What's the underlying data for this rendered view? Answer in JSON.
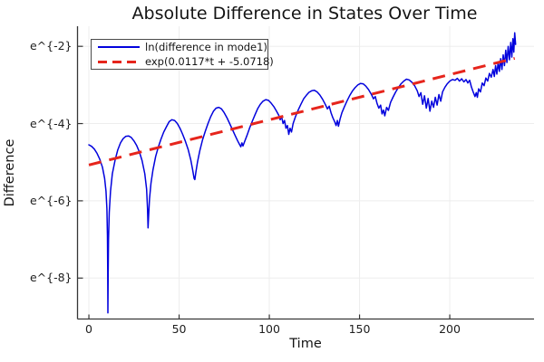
{
  "title": "Absolute Difference in States Over Time",
  "axes": {
    "x_label": "Time",
    "y_label": "Difference",
    "x_ticks": [
      {
        "value": 0,
        "label": "0"
      },
      {
        "value": 50,
        "label": "50"
      },
      {
        "value": 100,
        "label": "100"
      },
      {
        "value": 150,
        "label": "150"
      },
      {
        "value": 200,
        "label": "200"
      }
    ],
    "y_ticks": [
      {
        "ln": -2,
        "label": "e^{-2}"
      },
      {
        "ln": -4,
        "label": "e^{-4}"
      },
      {
        "ln": -6,
        "label": "e^{-6}"
      },
      {
        "ln": -8,
        "label": "e^{-8}"
      }
    ]
  },
  "legend": {
    "entries": [
      {
        "label": "ln(difference in mode1)",
        "color": "#0202dd",
        "style": "solid"
      },
      {
        "label": "exp(0.0117*t + -5.0718)",
        "color": "#e6251c",
        "style": "dashed"
      }
    ]
  },
  "colors": {
    "series_blue": "#0202dd",
    "series_red": "#e6251c",
    "gridline": "#ededed",
    "spine": "#363636",
    "text": "#141414",
    "background": "#ffffff"
  },
  "chart_data": {
    "type": "line",
    "title": "Absolute Difference in States Over Time",
    "xlabel": "Time",
    "ylabel": "Difference",
    "x_scale": "linear",
    "y_scale": "ln (tick labels shown as e^{v})",
    "xlim": [
      -6.3,
      246.7
    ],
    "ylim_ln": [
      -9.06,
      -1.48
    ],
    "grid": true,
    "legend_position": "top-left inside",
    "series": [
      {
        "name": "ln(difference in mode1)",
        "color": "#0202dd",
        "style": "solid",
        "points_format": "[t, ln(difference)]",
        "points": [
          [
            0,
            -4.55
          ],
          [
            1.5,
            -4.59
          ],
          [
            3,
            -4.66
          ],
          [
            4.5,
            -4.77
          ],
          [
            6,
            -4.92
          ],
          [
            7.5,
            -5.13
          ],
          [
            8.7,
            -5.42
          ],
          [
            9.5,
            -5.75
          ],
          [
            10,
            -6.2
          ],
          [
            10.3,
            -6.9
          ],
          [
            10.45,
            -7.8
          ],
          [
            10.55,
            -8.9
          ],
          [
            10.7,
            -7.9
          ],
          [
            10.9,
            -7.0
          ],
          [
            11.3,
            -6.3
          ],
          [
            12,
            -5.75
          ],
          [
            13,
            -5.3
          ],
          [
            14.5,
            -4.95
          ],
          [
            16,
            -4.68
          ],
          [
            17.5,
            -4.5
          ],
          [
            19,
            -4.39
          ],
          [
            20.5,
            -4.33
          ],
          [
            22,
            -4.32
          ],
          [
            23.5,
            -4.36
          ],
          [
            25,
            -4.45
          ],
          [
            26.5,
            -4.57
          ],
          [
            28,
            -4.74
          ],
          [
            29.5,
            -4.96
          ],
          [
            31,
            -5.3
          ],
          [
            32,
            -5.7
          ],
          [
            32.5,
            -6.2
          ],
          [
            32.8,
            -6.7
          ],
          [
            33.1,
            -6.4
          ],
          [
            33.6,
            -5.95
          ],
          [
            34.4,
            -5.55
          ],
          [
            35.5,
            -5.2
          ],
          [
            37,
            -4.85
          ],
          [
            38.5,
            -4.6
          ],
          [
            40,
            -4.4
          ],
          [
            41.5,
            -4.22
          ],
          [
            43,
            -4.08
          ],
          [
            44.5,
            -3.95
          ],
          [
            46,
            -3.9
          ],
          [
            47.5,
            -3.92
          ],
          [
            49,
            -4.0
          ],
          [
            50.5,
            -4.12
          ],
          [
            52,
            -4.28
          ],
          [
            53.5,
            -4.46
          ],
          [
            55,
            -4.67
          ],
          [
            56.5,
            -4.95
          ],
          [
            57.5,
            -5.2
          ],
          [
            58.3,
            -5.42
          ],
          [
            58.7,
            -5.45
          ],
          [
            59.3,
            -5.25
          ],
          [
            60.2,
            -5.0
          ],
          [
            61.5,
            -4.7
          ],
          [
            63,
            -4.42
          ],
          [
            64.5,
            -4.2
          ],
          [
            66,
            -4.0
          ],
          [
            67.5,
            -3.82
          ],
          [
            69,
            -3.68
          ],
          [
            70.5,
            -3.6
          ],
          [
            72,
            -3.58
          ],
          [
            73.5,
            -3.62
          ],
          [
            75,
            -3.72
          ],
          [
            76.5,
            -3.85
          ],
          [
            78,
            -4.0
          ],
          [
            79.5,
            -4.15
          ],
          [
            81,
            -4.3
          ],
          [
            82.5,
            -4.45
          ],
          [
            83.5,
            -4.54
          ],
          [
            84.2,
            -4.6
          ],
          [
            84.8,
            -4.5
          ],
          [
            85.4,
            -4.58
          ],
          [
            86.2,
            -4.48
          ],
          [
            87.5,
            -4.32
          ],
          [
            89,
            -4.12
          ],
          [
            90.5,
            -3.95
          ],
          [
            92,
            -3.78
          ],
          [
            93.5,
            -3.62
          ],
          [
            95,
            -3.5
          ],
          [
            96.5,
            -3.42
          ],
          [
            98,
            -3.38
          ],
          [
            99.5,
            -3.4
          ],
          [
            101,
            -3.47
          ],
          [
            102.5,
            -3.56
          ],
          [
            104,
            -3.68
          ],
          [
            105.2,
            -3.78
          ],
          [
            106,
            -3.9
          ],
          [
            106.8,
            -3.82
          ],
          [
            107.6,
            -4.0
          ],
          [
            108.4,
            -3.92
          ],
          [
            109.2,
            -4.12
          ],
          [
            110,
            -4.05
          ],
          [
            110.8,
            -4.28
          ],
          [
            111.5,
            -4.12
          ],
          [
            112.3,
            -4.22
          ],
          [
            113.2,
            -4.0
          ],
          [
            114.5,
            -3.82
          ],
          [
            116,
            -3.65
          ],
          [
            117.5,
            -3.5
          ],
          [
            119,
            -3.36
          ],
          [
            120.5,
            -3.27
          ],
          [
            122,
            -3.19
          ],
          [
            123.5,
            -3.15
          ],
          [
            125,
            -3.14
          ],
          [
            126.5,
            -3.18
          ],
          [
            128,
            -3.26
          ],
          [
            129.5,
            -3.37
          ],
          [
            131,
            -3.5
          ],
          [
            132.2,
            -3.62
          ],
          [
            133.2,
            -3.55
          ],
          [
            134.2,
            -3.72
          ],
          [
            135.2,
            -3.85
          ],
          [
            136.2,
            -3.95
          ],
          [
            137,
            -4.05
          ],
          [
            137.7,
            -3.92
          ],
          [
            138.3,
            -4.07
          ],
          [
            139.2,
            -3.88
          ],
          [
            140.2,
            -3.72
          ],
          [
            141.5,
            -3.58
          ],
          [
            143,
            -3.42
          ],
          [
            144.5,
            -3.28
          ],
          [
            146,
            -3.16
          ],
          [
            147.5,
            -3.07
          ],
          [
            149,
            -3.0
          ],
          [
            150.5,
            -2.96
          ],
          [
            152,
            -2.97
          ],
          [
            153.5,
            -3.03
          ],
          [
            155,
            -3.12
          ],
          [
            156.5,
            -3.24
          ],
          [
            157.7,
            -3.36
          ],
          [
            158.7,
            -3.3
          ],
          [
            159.7,
            -3.48
          ],
          [
            160.7,
            -3.6
          ],
          [
            161.7,
            -3.52
          ],
          [
            162.5,
            -3.75
          ],
          [
            163.3,
            -3.65
          ],
          [
            164,
            -3.8
          ],
          [
            165,
            -3.58
          ],
          [
            166,
            -3.66
          ],
          [
            167.2,
            -3.45
          ],
          [
            168.5,
            -3.32
          ],
          [
            170,
            -3.18
          ],
          [
            171.5,
            -3.07
          ],
          [
            173,
            -2.97
          ],
          [
            174.5,
            -2.9
          ],
          [
            176,
            -2.85
          ],
          [
            177.5,
            -2.87
          ],
          [
            179,
            -2.93
          ],
          [
            180.5,
            -3.02
          ],
          [
            182,
            -3.15
          ],
          [
            183,
            -3.3
          ],
          [
            184,
            -3.2
          ],
          [
            185,
            -3.5
          ],
          [
            186,
            -3.28
          ],
          [
            187,
            -3.6
          ],
          [
            188,
            -3.35
          ],
          [
            189,
            -3.68
          ],
          [
            190,
            -3.42
          ],
          [
            191,
            -3.58
          ],
          [
            192,
            -3.32
          ],
          [
            193,
            -3.52
          ],
          [
            194,
            -3.25
          ],
          [
            195,
            -3.42
          ],
          [
            196,
            -3.18
          ],
          [
            197.3,
            -3.06
          ],
          [
            198.6,
            -2.97
          ],
          [
            200,
            -2.9
          ],
          [
            201.5,
            -2.86
          ],
          [
            203,
            -2.88
          ],
          [
            204.2,
            -2.83
          ],
          [
            205.4,
            -2.9
          ],
          [
            206.6,
            -2.84
          ],
          [
            207.8,
            -2.92
          ],
          [
            209,
            -2.86
          ],
          [
            210,
            -2.95
          ],
          [
            211,
            -2.88
          ],
          [
            212,
            -3.05
          ],
          [
            213,
            -3.18
          ],
          [
            214,
            -3.3
          ],
          [
            214.7,
            -3.2
          ],
          [
            215.3,
            -3.32
          ],
          [
            216,
            -3.1
          ],
          [
            217,
            -3.18
          ],
          [
            218,
            -2.95
          ],
          [
            219,
            -3.02
          ],
          [
            220,
            -2.82
          ],
          [
            221,
            -2.9
          ],
          [
            222,
            -2.7
          ],
          [
            223,
            -2.8
          ],
          [
            224,
            -2.6
          ],
          [
            224.7,
            -2.78
          ],
          [
            225.4,
            -2.5
          ],
          [
            226.1,
            -2.72
          ],
          [
            226.8,
            -2.42
          ],
          [
            227.5,
            -2.65
          ],
          [
            228.2,
            -2.32
          ],
          [
            228.9,
            -2.6
          ],
          [
            229.6,
            -2.22
          ],
          [
            230.3,
            -2.5
          ],
          [
            231,
            -2.1
          ],
          [
            231.7,
            -2.42
          ],
          [
            232.4,
            -2.0
          ],
          [
            233.1,
            -2.35
          ],
          [
            233.8,
            -1.9
          ],
          [
            234.4,
            -2.28
          ],
          [
            235,
            -1.8
          ],
          [
            235.5,
            -2.15
          ],
          [
            236,
            -1.65
          ],
          [
            236.5,
            -1.95
          ]
        ]
      },
      {
        "name": "exp(0.0117*t + -5.0718)",
        "color": "#e6251c",
        "style": "dashed",
        "fit": {
          "slope": 0.0117,
          "intercept": -5.0718,
          "t_range": [
            0,
            236
          ]
        }
      }
    ]
  }
}
